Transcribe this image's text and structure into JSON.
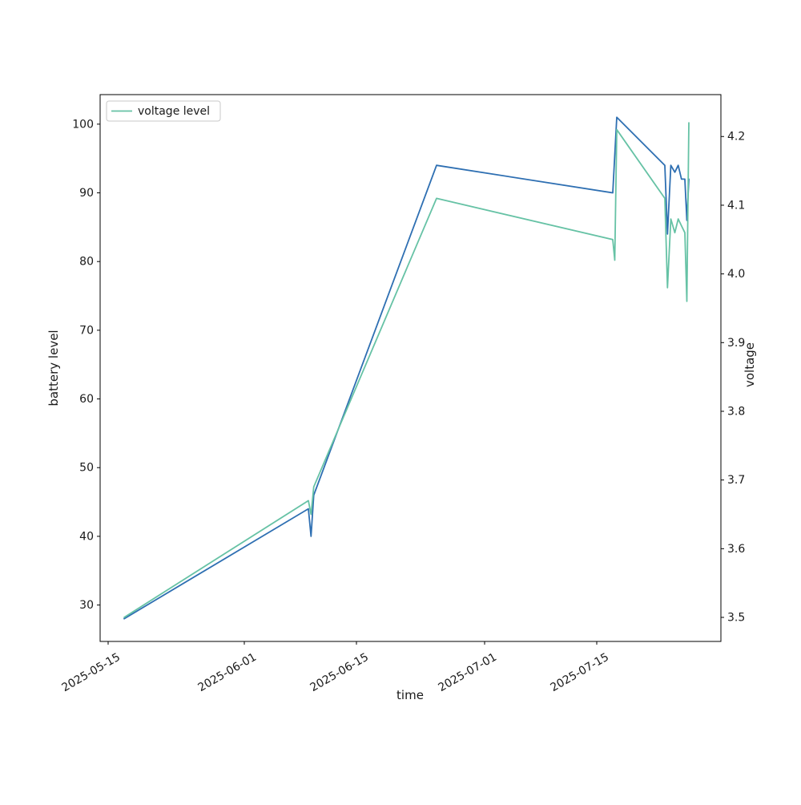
{
  "figure": {
    "background": "#ffffff"
  },
  "chart_data": {
    "type": "line",
    "title": "",
    "xlabel": "time",
    "ylabel_left": "battery level",
    "ylabel_right": "voltage",
    "grid": false,
    "legend": {
      "position": "upper left",
      "entries": [
        {
          "label": "voltage level",
          "color": "#66c2a5"
        }
      ]
    },
    "x_tick_labels": [
      "2025-05-15",
      "2025-06-01",
      "2025-06-15",
      "2025-07-01",
      "2025-07-15"
    ],
    "y_left_ticks": [
      30,
      40,
      50,
      60,
      70,
      80,
      90,
      100
    ],
    "y_right_ticks": [
      3.5,
      3.6,
      3.7,
      3.8,
      3.9,
      4.0,
      4.1,
      4.2
    ],
    "x_range": [
      "2025-05-14T00:00",
      "2025-07-30T12:00"
    ],
    "y_left_range": [
      24.7,
      104.3
    ],
    "y_right_range": [
      3.465,
      4.261
    ],
    "series": [
      {
        "name": "battery level",
        "axis": "left",
        "color": "#2e6fb2",
        "points": [
          [
            "2025-05-17T00:00",
            28
          ],
          [
            "2025-06-09T00:00",
            44
          ],
          [
            "2025-06-09T08:00",
            40
          ],
          [
            "2025-06-09T16:00",
            46
          ],
          [
            "2025-06-25T00:00",
            94
          ],
          [
            "2025-07-17T00:00",
            90
          ],
          [
            "2025-07-17T12:00",
            101
          ],
          [
            "2025-07-23T12:00",
            94
          ],
          [
            "2025-07-23T20:00",
            84
          ],
          [
            "2025-07-24T06:00",
            94
          ],
          [
            "2025-07-24T18:00",
            93
          ],
          [
            "2025-07-25T04:00",
            94
          ],
          [
            "2025-07-25T14:00",
            92
          ],
          [
            "2025-07-26T00:00",
            92
          ],
          [
            "2025-07-26T06:00",
            86
          ],
          [
            "2025-07-26T12:00",
            92
          ]
        ]
      },
      {
        "name": "voltage level",
        "axis": "right",
        "color": "#66c2a5",
        "points": [
          [
            "2025-05-17T00:00",
            3.5
          ],
          [
            "2025-06-09T00:00",
            3.67
          ],
          [
            "2025-06-09T08:00",
            3.65
          ],
          [
            "2025-06-09T16:00",
            3.69
          ],
          [
            "2025-06-25T00:00",
            4.11
          ],
          [
            "2025-07-17T00:00",
            4.05
          ],
          [
            "2025-07-17T06:00",
            4.02
          ],
          [
            "2025-07-17T12:00",
            4.21
          ],
          [
            "2025-07-23T12:00",
            4.11
          ],
          [
            "2025-07-23T20:00",
            3.98
          ],
          [
            "2025-07-24T06:00",
            4.08
          ],
          [
            "2025-07-24T18:00",
            4.06
          ],
          [
            "2025-07-25T04:00",
            4.08
          ],
          [
            "2025-07-25T14:00",
            4.07
          ],
          [
            "2025-07-26T00:00",
            4.06
          ],
          [
            "2025-07-26T06:00",
            3.96
          ],
          [
            "2025-07-26T12:00",
            4.22
          ]
        ]
      }
    ]
  }
}
